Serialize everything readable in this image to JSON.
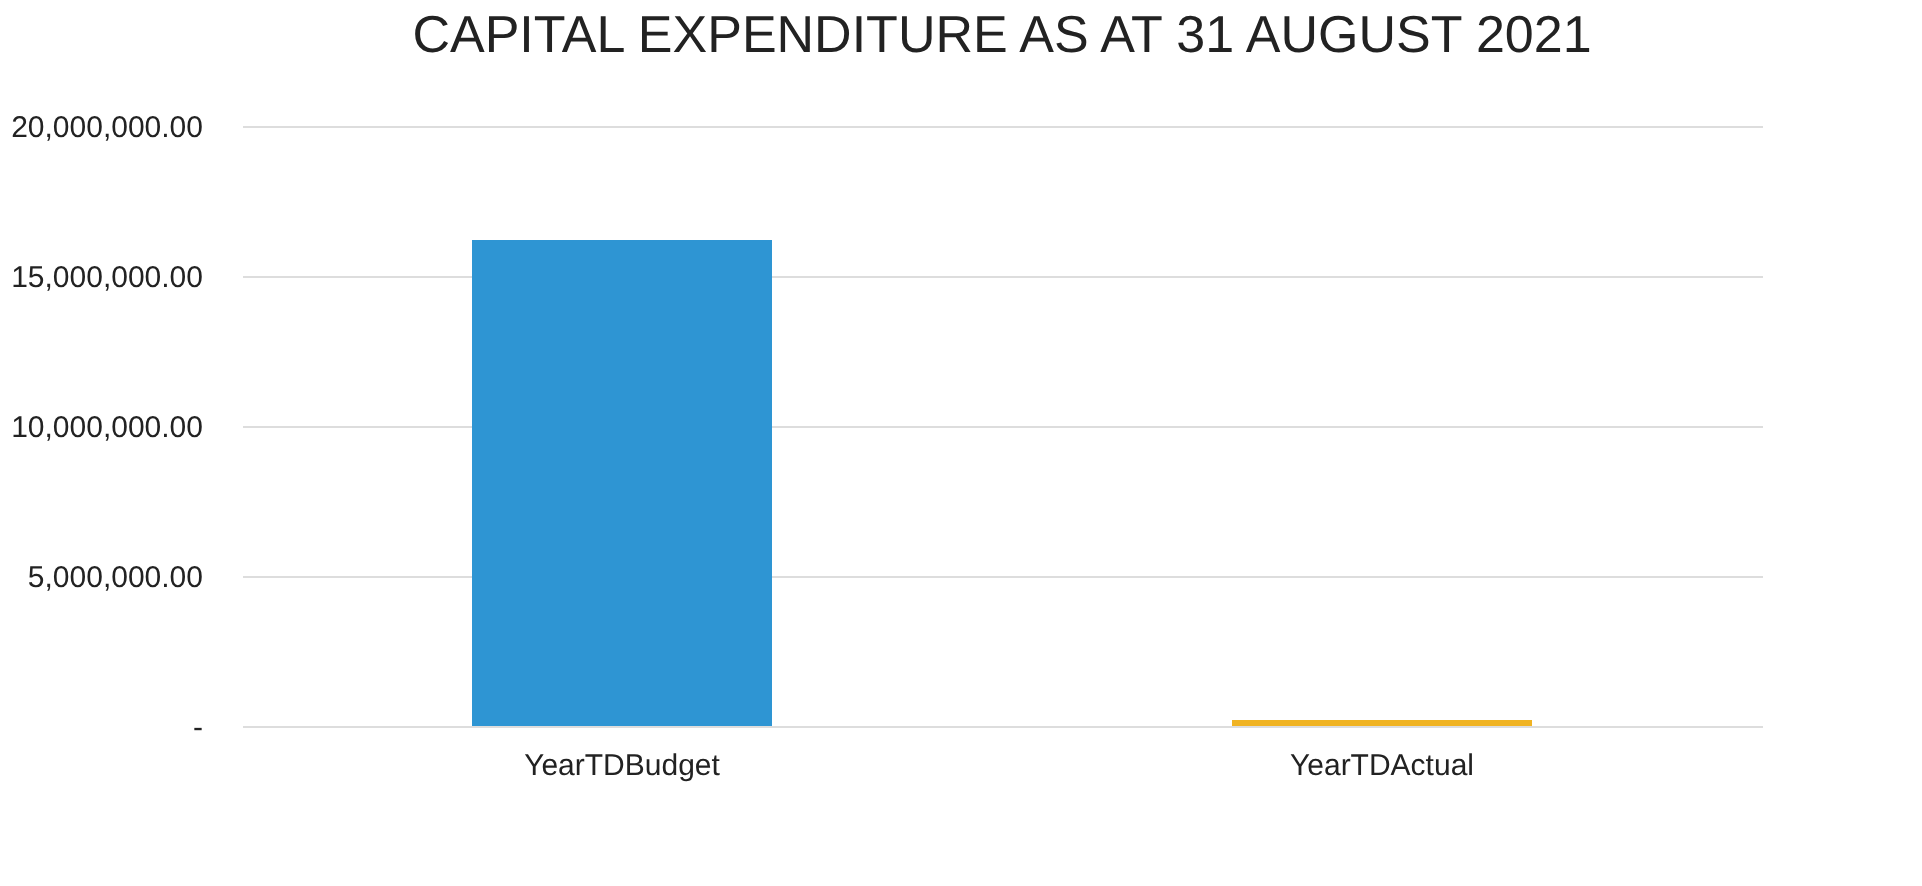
{
  "chart_data": {
    "type": "bar",
    "title": "CAPITAL EXPENDITURE AS AT 31 AUGUST 2021",
    "categories": [
      "YearTDBudget",
      "YearTDActual"
    ],
    "values": [
      16200000,
      200000
    ],
    "colors": [
      "#2e95d3",
      "#f0b323"
    ],
    "ylim": [
      0,
      20000000
    ],
    "yticks": [
      {
        "value": 0,
        "label": "-"
      },
      {
        "value": 5000000,
        "label": "5,000,000.00"
      },
      {
        "value": 10000000,
        "label": "10,000,000.00"
      },
      {
        "value": 15000000,
        "label": "15,000,000.00"
      },
      {
        "value": 20000000,
        "label": "20,000,000.00"
      }
    ],
    "grid": "y"
  }
}
